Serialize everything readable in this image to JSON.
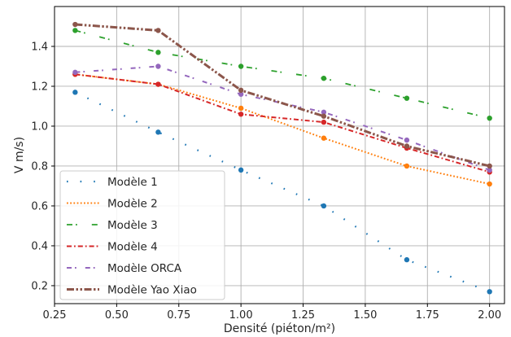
{
  "chart_data": {
    "type": "line",
    "title": "",
    "xlabel": "Densité (piéton/m²)",
    "ylabel": "V m/s)",
    "xlim": [
      0.25,
      2.06
    ],
    "ylim": [
      0.11,
      1.6
    ],
    "xticks": [
      "0.25",
      "0.50",
      "0.75",
      "1.00",
      "1.25",
      "1.50",
      "1.75",
      "2.00"
    ],
    "yticks": [
      "0.2",
      "0.4",
      "0.6",
      "0.8",
      "1.0",
      "1.2",
      "1.4"
    ],
    "grid": true,
    "legend_position": "lower-left",
    "x": [
      0.333,
      0.667,
      1.0,
      1.333,
      1.667,
      2.0
    ],
    "series": [
      {
        "name": "Modèle 1",
        "color": "#1f77b4",
        "style": "dotted-sparse",
        "values": [
          1.17,
          0.97,
          0.78,
          0.6,
          0.33,
          0.17
        ]
      },
      {
        "name": "Modèle 2",
        "color": "#ff7f0e",
        "style": "dotted",
        "values": [
          1.26,
          1.21,
          1.09,
          0.94,
          0.8,
          0.71
        ]
      },
      {
        "name": "Modèle 3",
        "color": "#2ca02c",
        "style": "dashed-sparse",
        "values": [
          1.48,
          1.37,
          1.3,
          1.24,
          1.14,
          1.04
        ]
      },
      {
        "name": "Modèle 4",
        "color": "#d62728",
        "style": "dash-dot",
        "values": [
          1.26,
          1.21,
          1.06,
          1.02,
          0.89,
          0.77
        ]
      },
      {
        "name": "Modèle ORCA",
        "color": "#9467bd",
        "style": "dash-dot-sparse",
        "values": [
          1.27,
          1.3,
          1.16,
          1.07,
          0.93,
          0.78
        ]
      },
      {
        "name": "Modèle Yao Xiao",
        "color": "#8c564b",
        "style": "dash-dot-dot-thick",
        "values": [
          1.51,
          1.48,
          1.18,
          1.05,
          0.9,
          0.8
        ]
      }
    ]
  }
}
